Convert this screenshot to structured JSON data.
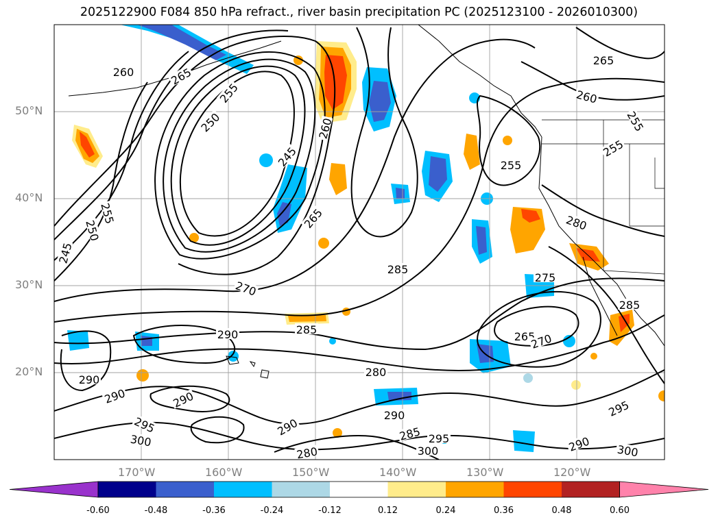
{
  "title": "2025122900 F084 850 hPa refract., river basin precipitation PC (2025123100 - 2026010300)",
  "lat_labels": [
    "50°N",
    "40°N",
    "30°N",
    "20°N"
  ],
  "lon_labels": [
    "170°W",
    "160°W",
    "150°W",
    "140°W",
    "130°W",
    "120°W"
  ],
  "colorbar": {
    "ticks": [
      "-0.60",
      "-0.48",
      "-0.36",
      "-0.24",
      "-0.12",
      "0.12",
      "0.24",
      "0.36",
      "0.48",
      "0.60"
    ],
    "colors": [
      "#9932cc",
      "#00008b",
      "#3a5fcd",
      "#00bfff",
      "#add8e6",
      "#ffffff",
      "#ffec8b",
      "#ffa500",
      "#ff4500",
      "#b22222",
      "#ff82ab"
    ]
  },
  "contour_labels": [
    "260",
    "265",
    "255",
    "250",
    "245",
    "260",
    "265",
    "265",
    "260",
    "255",
    "255",
    "255",
    "280",
    "275",
    "285",
    "285",
    "270",
    "265",
    "270",
    "255",
    "250",
    "245",
    "290",
    "285",
    "290",
    "280",
    "290",
    "290",
    "290",
    "295",
    "300",
    "280",
    "285",
    "295",
    "300",
    "290",
    "295",
    "300",
    "290"
  ]
}
